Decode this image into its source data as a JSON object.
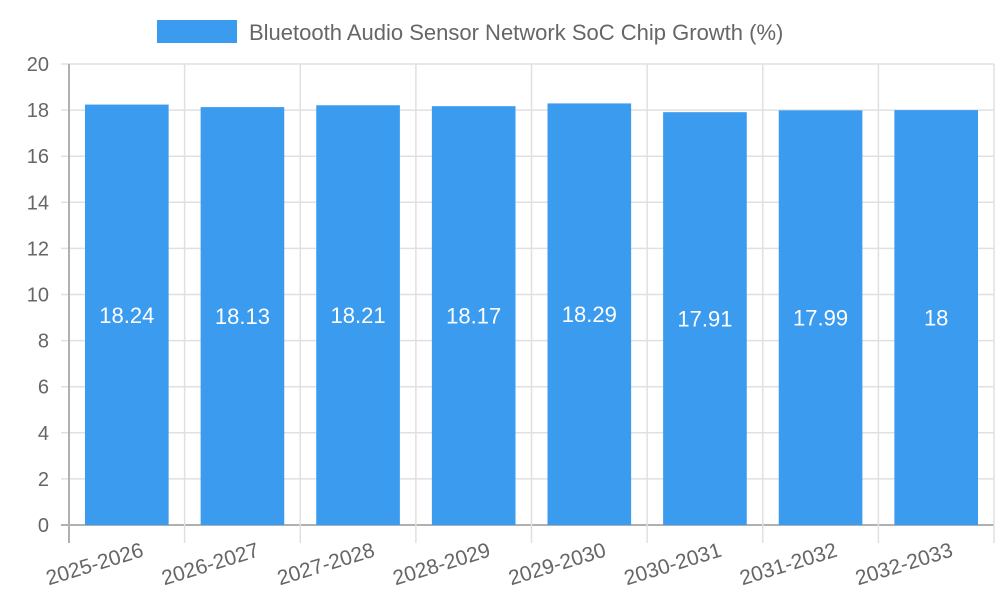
{
  "chart_data": {
    "type": "bar",
    "title": "",
    "legend": [
      "Bluetooth Audio Sensor Network SoC Chip Growth (%)"
    ],
    "legend_position": "top",
    "categories": [
      "2025-2026",
      "2026-2027",
      "2027-2028",
      "2028-2029",
      "2029-2030",
      "2030-2031",
      "2031-2032",
      "2032-2033"
    ],
    "series": [
      {
        "name": "Bluetooth Audio Sensor Network SoC Chip Growth (%)",
        "color": "#3a9bef",
        "values": [
          18.24,
          18.13,
          18.21,
          18.17,
          18.29,
          17.91,
          17.99,
          18
        ]
      }
    ],
    "value_labels": [
      "18.24",
      "18.13",
      "18.21",
      "18.17",
      "18.29",
      "17.91",
      "17.99",
      "18"
    ],
    "xlabel": "",
    "ylabel": "",
    "ylim": [
      0,
      20
    ],
    "yticks": [
      "0",
      "2",
      "4",
      "6",
      "8",
      "10",
      "12",
      "14",
      "16",
      "18",
      "20"
    ],
    "grid": true
  },
  "colors": {
    "bar": "#3a9bef",
    "grid": "#e0e0e0",
    "axis": "#b0b0b0",
    "text": "#666666"
  }
}
